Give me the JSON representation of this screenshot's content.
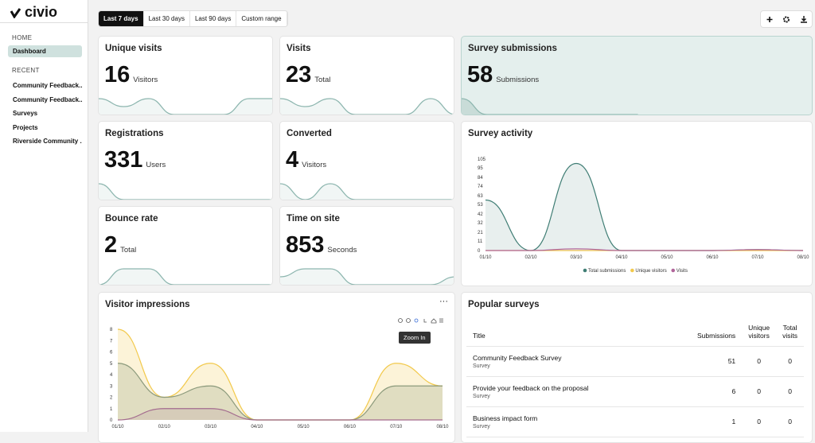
{
  "sidebar": {
    "logo": "civio",
    "home_heading": "HOME",
    "home_items": [
      "Dashboard"
    ],
    "recent_heading": "RECENT",
    "recent_items": [
      "Community Feedback...",
      "Community Feedback...",
      "Surveys",
      "Projects",
      "Riverside Community ..."
    ]
  },
  "toolbar": {
    "ranges": [
      "Last 7 days",
      "Last 30 days",
      "Last 90 days",
      "Custom range"
    ],
    "active_range": 0
  },
  "cards": [
    {
      "title": "Unique visits",
      "value": 16,
      "unit": "Visitors",
      "trend": [
        2,
        1,
        2,
        0,
        0,
        0,
        2,
        2
      ]
    },
    {
      "title": "Visits",
      "value": 23,
      "unit": "Total",
      "trend": [
        2,
        1,
        2,
        0,
        0,
        0,
        2,
        0
      ]
    },
    {
      "title": "Survey submissions",
      "value": 58,
      "unit": "Submissions",
      "trend": [
        1,
        0,
        0,
        0,
        0,
        0,
        0,
        0
      ],
      "highlighted": true
    },
    {
      "title": "Registrations",
      "value": 331,
      "unit": "Users",
      "trend": [
        1,
        0,
        0,
        0,
        0,
        0,
        0,
        0
      ]
    },
    {
      "title": "Converted",
      "value": 4,
      "unit": "Visitors",
      "trend": [
        1,
        0,
        1,
        0,
        0,
        0,
        0,
        0
      ]
    },
    {
      "title": "Bounce rate",
      "value": 2,
      "unit": "Total",
      "trend": [
        0,
        1,
        1,
        0,
        0,
        0,
        0,
        0
      ]
    },
    {
      "title": "Time on site",
      "value": 853,
      "unit": "Seconds",
      "trend": [
        1,
        2,
        2,
        0,
        0,
        0,
        0,
        1
      ]
    }
  ],
  "survey_activity": {
    "type": "area",
    "title": "Survey activity",
    "x": [
      "01/10",
      "02/10",
      "03/10",
      "04/10",
      "05/10",
      "06/10",
      "07/10",
      "08/10"
    ],
    "ylim": [
      0,
      105
    ],
    "yticks": [
      0,
      11,
      21,
      32,
      42,
      53,
      63,
      74,
      84,
      95,
      105
    ],
    "series": [
      {
        "name": "Total submissions",
        "color": "#3f7d74",
        "values": [
          58,
          0,
          100,
          0,
          0,
          0,
          1,
          0
        ]
      },
      {
        "name": "Unique visitors",
        "color": "#f2c94c",
        "values": [
          0,
          0,
          0,
          0,
          0,
          0,
          0,
          0
        ]
      },
      {
        "name": "Visits",
        "color": "#b0649a",
        "values": [
          0,
          0,
          2,
          0,
          0,
          0,
          1,
          0
        ]
      }
    ]
  },
  "visitor_impressions": {
    "type": "area",
    "title": "Visitor impressions",
    "tooltip": "Zoom In",
    "x": [
      "01/10",
      "02/10",
      "03/10",
      "04/10",
      "05/10",
      "06/10",
      "07/10",
      "08/10"
    ],
    "ylim": [
      0,
      8
    ],
    "yticks": [
      0,
      1,
      2,
      3,
      4,
      5,
      6,
      7,
      8
    ],
    "series": [
      {
        "color": "#f2c94c",
        "values": [
          8,
          2,
          5,
          0,
          0,
          0,
          5,
          3
        ]
      },
      {
        "color": "#8c9a7c",
        "values": [
          5,
          2,
          3,
          0,
          0,
          0,
          3,
          3
        ]
      },
      {
        "color": "#a36b8e",
        "values": [
          0,
          1,
          1,
          0,
          0,
          0,
          0,
          0
        ]
      }
    ]
  },
  "popular_surveys": {
    "title": "Popular surveys",
    "headers": [
      "Title",
      "Submissions",
      "Unique visitors",
      "Total visits"
    ],
    "rows": [
      [
        "Community Feedback Survey",
        "Survey",
        51,
        0,
        0
      ],
      [
        "Provide your feedback on the proposal",
        "Survey",
        6,
        0,
        0
      ],
      [
        "Business impact form",
        "Survey",
        1,
        0,
        0
      ]
    ]
  }
}
